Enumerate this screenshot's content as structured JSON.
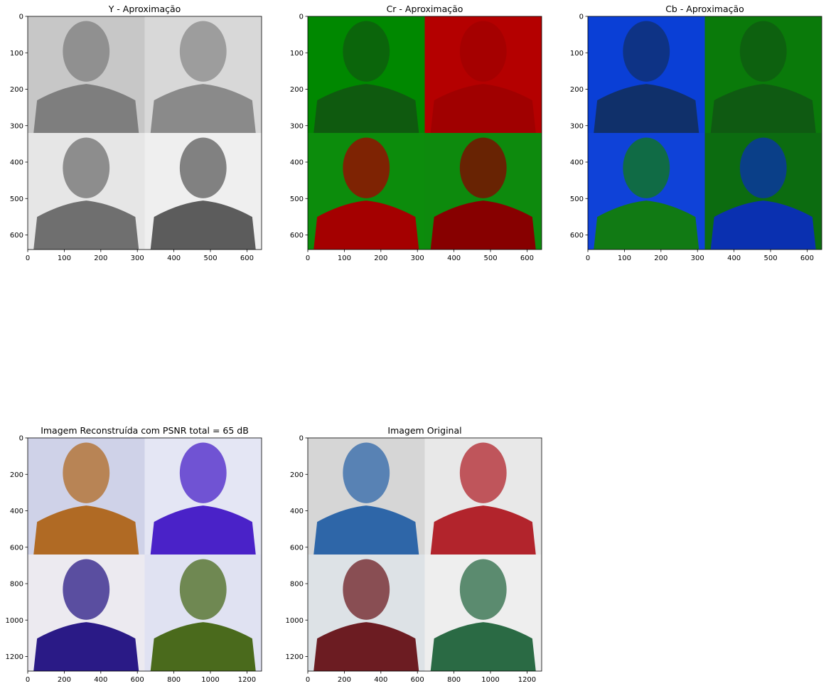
{
  "chart_data": [
    {
      "type": "image",
      "title": "Y - Aproximação",
      "xlim": [
        0,
        640
      ],
      "ylim": [
        640,
        0
      ],
      "xticks": [
        0,
        100,
        200,
        300,
        400,
        500,
        600
      ],
      "yticks": [
        0,
        100,
        200,
        300,
        400,
        500,
        600
      ],
      "xticklabels": [
        "0",
        "100",
        "200",
        "300",
        "400",
        "500",
        "600"
      ],
      "yticklabels": [
        "0",
        "100",
        "200",
        "300",
        "400",
        "500",
        "600"
      ],
      "split": 320,
      "colormap": "gray",
      "quadrant_colors": [
        "#7e7e7e",
        "#8a8a8a",
        "#6f6f6f",
        "#5c5c5c"
      ],
      "bg_colors": [
        "#c7c7c7",
        "#d8d8d8",
        "#e6e6e6",
        "#efefef"
      ]
    },
    {
      "type": "image",
      "title": "Cr - Aproximação",
      "xlim": [
        0,
        640
      ],
      "ylim": [
        640,
        0
      ],
      "xticks": [
        0,
        100,
        200,
        300,
        400,
        500,
        600
      ],
      "yticks": [
        0,
        100,
        200,
        300,
        400,
        500,
        600
      ],
      "xticklabels": [
        "0",
        "100",
        "200",
        "300",
        "400",
        "500",
        "600"
      ],
      "yticklabels": [
        "0",
        "100",
        "200",
        "300",
        "400",
        "500",
        "600"
      ],
      "split": 320,
      "colormap": "green-red",
      "quadrant_colors": [
        "#0f5a0f",
        "#a00000",
        "#a40000",
        "#870000"
      ],
      "bg_colors": [
        "#008800",
        "#b40000",
        "#0c8c0c",
        "#0d8a0d"
      ]
    },
    {
      "type": "image",
      "title": "Cb - Aproximação",
      "xlim": [
        0,
        640
      ],
      "ylim": [
        640,
        0
      ],
      "xticks": [
        0,
        100,
        200,
        300,
        400,
        500,
        600
      ],
      "yticks": [
        0,
        100,
        200,
        300,
        400,
        500,
        600
      ],
      "xticklabels": [
        "0",
        "100",
        "200",
        "300",
        "400",
        "500",
        "600"
      ],
      "yticklabels": [
        "0",
        "100",
        "200",
        "300",
        "400",
        "500",
        "600"
      ],
      "split": 320,
      "colormap": "blue-green",
      "quadrant_colors": [
        "#10306a",
        "#0f5a12",
        "#117a14",
        "#0a30b0"
      ],
      "bg_colors": [
        "#0a3fd6",
        "#0a7a0a",
        "#0f42d8",
        "#0c6c10"
      ]
    },
    {
      "type": "image",
      "title": "Imagem Reconstruída com PSNR total = 65 dB",
      "xlim": [
        0,
        1280
      ],
      "ylim": [
        1280,
        0
      ],
      "xticks": [
        0,
        200,
        400,
        600,
        800,
        1000,
        1200
      ],
      "yticks": [
        0,
        200,
        400,
        600,
        800,
        1000,
        1200
      ],
      "xticklabels": [
        "0",
        "200",
        "400",
        "600",
        "800",
        "1000",
        "1200"
      ],
      "yticklabels": [
        "0",
        "200",
        "400",
        "600",
        "800",
        "1000",
        "1200"
      ],
      "split": 640,
      "colormap": "rgb",
      "quadrant_colors": [
        "#b06a24",
        "#4a22c8",
        "#2a1a86",
        "#4a6a1c"
      ],
      "bg_colors": [
        "#cfd2e8",
        "#e4e6f4",
        "#eceaf0",
        "#e0e2f2"
      ]
    },
    {
      "type": "image",
      "title": "Imagem Original",
      "xlim": [
        0,
        1280
      ],
      "ylim": [
        1280,
        0
      ],
      "xticks": [
        0,
        200,
        400,
        600,
        800,
        1000,
        1200
      ],
      "yticks": [
        0,
        200,
        400,
        600,
        800,
        1000,
        1200
      ],
      "xticklabels": [
        "0",
        "200",
        "400",
        "600",
        "800",
        "1000",
        "1200"
      ],
      "yticklabels": [
        "0",
        "200",
        "400",
        "600",
        "800",
        "1000",
        "1200"
      ],
      "split": 640,
      "colormap": "rgb",
      "quadrant_colors": [
        "#2e66a8",
        "#b2242c",
        "#6c1c22",
        "#2a6a44"
      ],
      "bg_colors": [
        "#d6d6d6",
        "#e8e8e8",
        "#dde2e6",
        "#eeeeee"
      ]
    }
  ]
}
